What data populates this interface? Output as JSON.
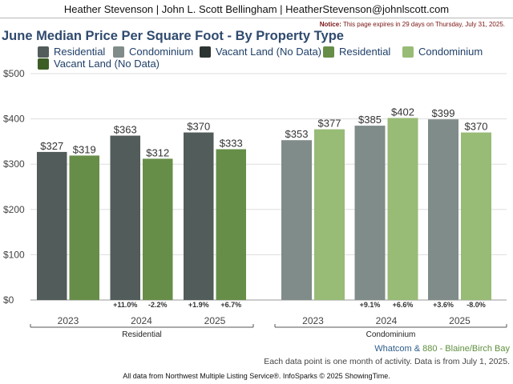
{
  "header": {
    "agents": "Heather Stevenson | John L. Scott Bellingham | HeatherStevenson@johnlscott.com"
  },
  "notice": {
    "label": "Notice:",
    "text": "This page expires in 29 days on Thursday, July 31, 2025."
  },
  "legend": [
    {
      "label": "Residential",
      "color": "#525c5a"
    },
    {
      "label": "Condominium",
      "color": "#808c8a"
    },
    {
      "label": "Vacant Land (No Data)",
      "color": "#2c3432"
    },
    {
      "label": "Residential",
      "color": "#678e48"
    },
    {
      "label": "Condominium",
      "color": "#98bb76"
    },
    {
      "label": "Vacant Land (No Data)",
      "color": "#3c5e25"
    }
  ],
  "chart_data": {
    "type": "bar",
    "title": "June Median Price Per Square Foot - By Property Type",
    "ylim": [
      0,
      500
    ],
    "yticks": [
      "$0",
      "$100",
      "$200",
      "$300",
      "$400",
      "$500"
    ],
    "grid": true,
    "groups": [
      {
        "name": "Residential",
        "categories": [
          "2023",
          "2024",
          "2025"
        ],
        "series": [
          {
            "values": [
              327,
              363,
              370
            ],
            "labels": [
              "$327",
              "$363",
              "$370"
            ],
            "changes": [
              "",
              "",
              ""
            ],
            "color": "#525c5a"
          },
          {
            "values": [
              319,
              312,
              333
            ],
            "labels": [
              "$319",
              "$312",
              "$333"
            ],
            "changes": [
              "",
              "",
              ""
            ],
            "color": "#678e48"
          }
        ],
        "changes_row": [
          [
            "",
            ""
          ],
          [
            "+11.0%",
            "-2.2%"
          ],
          [
            "+1.9%",
            "+6.7%"
          ]
        ]
      },
      {
        "name": "Condominium",
        "categories": [
          "2023",
          "2024",
          "2025"
        ],
        "series": [
          {
            "values": [
              353,
              385,
              399
            ],
            "labels": [
              "$353",
              "$385",
              "$399"
            ],
            "color": "#808c8a"
          },
          {
            "values": [
              377,
              402,
              370
            ],
            "labels": [
              "$377",
              "$402",
              "$370"
            ],
            "color": "#98bb76"
          }
        ],
        "changes_row": [
          [
            "",
            ""
          ],
          [
            "+9.1%",
            "+6.6%"
          ],
          [
            "+3.6%",
            "-8.0%"
          ]
        ]
      }
    ]
  },
  "footer": {
    "area_a": "Whatcom",
    "amp": "&",
    "area_b": "880 - Blaine/Birch Bay",
    "note": "Each data point is one month of activity. Data is from July 1, 2025.",
    "source": "All data from Northwest Multiple Listing Service®. InfoSparks © 2025 ShowingTime."
  }
}
